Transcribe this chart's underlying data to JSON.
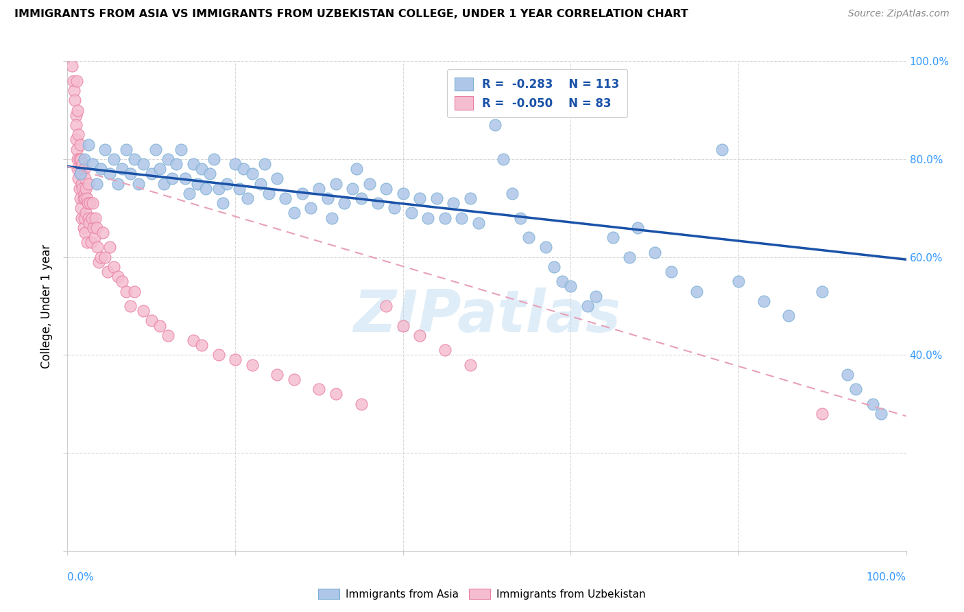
{
  "title": "IMMIGRANTS FROM ASIA VS IMMIGRANTS FROM UZBEKISTAN COLLEGE, UNDER 1 YEAR CORRELATION CHART",
  "source": "Source: ZipAtlas.com",
  "ylabel": "College, Under 1 year",
  "xlim": [
    0.0,
    1.0
  ],
  "ylim": [
    0.0,
    1.0
  ],
  "asia_color": "#aec6e8",
  "asia_edge_color": "#7aafd4",
  "uzbekistan_color": "#f5bdd0",
  "uzbekistan_edge_color": "#e87fa0",
  "asia_line_color": "#1a52a8",
  "uzbekistan_line_color": "#e8a0b8",
  "background_color": "#ffffff",
  "grid_color": "#d8d8d8",
  "watermark": "ZIPatlas",
  "asia_line_start_y": 0.785,
  "asia_line_end_y": 0.595,
  "uzbekistan_line_start_y": 0.785,
  "uzbekistan_line_end_y": 0.275,
  "asia_scatter_x": [
    0.015,
    0.02,
    0.025,
    0.03,
    0.035,
    0.04,
    0.045,
    0.05,
    0.055,
    0.06,
    0.065,
    0.07,
    0.075,
    0.08,
    0.085,
    0.09,
    0.1,
    0.105,
    0.11,
    0.115,
    0.12,
    0.125,
    0.13,
    0.135,
    0.14,
    0.145,
    0.15,
    0.155,
    0.16,
    0.165,
    0.17,
    0.175,
    0.18,
    0.185,
    0.19,
    0.2,
    0.205,
    0.21,
    0.215,
    0.22,
    0.23,
    0.235,
    0.24,
    0.25,
    0.26,
    0.27,
    0.28,
    0.29,
    0.3,
    0.31,
    0.315,
    0.32,
    0.33,
    0.34,
    0.345,
    0.35,
    0.36,
    0.37,
    0.38,
    0.39,
    0.4,
    0.41,
    0.42,
    0.43,
    0.44,
    0.45,
    0.46,
    0.47,
    0.48,
    0.49,
    0.5,
    0.51,
    0.52,
    0.53,
    0.54,
    0.55,
    0.57,
    0.58,
    0.59,
    0.6,
    0.62,
    0.63,
    0.65,
    0.67,
    0.68,
    0.7,
    0.72,
    0.75,
    0.78,
    0.8,
    0.83,
    0.86,
    0.9,
    0.93,
    0.94,
    0.96,
    0.97
  ],
  "asia_scatter_y": [
    0.77,
    0.8,
    0.83,
    0.79,
    0.75,
    0.78,
    0.82,
    0.77,
    0.8,
    0.75,
    0.78,
    0.82,
    0.77,
    0.8,
    0.75,
    0.79,
    0.77,
    0.82,
    0.78,
    0.75,
    0.8,
    0.76,
    0.79,
    0.82,
    0.76,
    0.73,
    0.79,
    0.75,
    0.78,
    0.74,
    0.77,
    0.8,
    0.74,
    0.71,
    0.75,
    0.79,
    0.74,
    0.78,
    0.72,
    0.77,
    0.75,
    0.79,
    0.73,
    0.76,
    0.72,
    0.69,
    0.73,
    0.7,
    0.74,
    0.72,
    0.68,
    0.75,
    0.71,
    0.74,
    0.78,
    0.72,
    0.75,
    0.71,
    0.74,
    0.7,
    0.73,
    0.69,
    0.72,
    0.68,
    0.72,
    0.68,
    0.71,
    0.68,
    0.72,
    0.67,
    0.94,
    0.87,
    0.8,
    0.73,
    0.68,
    0.64,
    0.62,
    0.58,
    0.55,
    0.54,
    0.5,
    0.52,
    0.64,
    0.6,
    0.66,
    0.61,
    0.57,
    0.53,
    0.82,
    0.55,
    0.51,
    0.48,
    0.53,
    0.36,
    0.33,
    0.3,
    0.28
  ],
  "uzbekistan_scatter_x": [
    0.005,
    0.007,
    0.008,
    0.009,
    0.01,
    0.01,
    0.01,
    0.011,
    0.011,
    0.012,
    0.012,
    0.012,
    0.013,
    0.013,
    0.014,
    0.014,
    0.015,
    0.015,
    0.015,
    0.016,
    0.016,
    0.016,
    0.017,
    0.017,
    0.018,
    0.018,
    0.019,
    0.019,
    0.02,
    0.02,
    0.02,
    0.021,
    0.021,
    0.021,
    0.022,
    0.022,
    0.023,
    0.023,
    0.024,
    0.025,
    0.025,
    0.026,
    0.027,
    0.028,
    0.029,
    0.03,
    0.031,
    0.032,
    0.033,
    0.035,
    0.036,
    0.037,
    0.04,
    0.042,
    0.045,
    0.048,
    0.05,
    0.055,
    0.06,
    0.065,
    0.07,
    0.075,
    0.08,
    0.09,
    0.1,
    0.11,
    0.12,
    0.15,
    0.16,
    0.18,
    0.2,
    0.22,
    0.25,
    0.27,
    0.3,
    0.32,
    0.35,
    0.38,
    0.4,
    0.42,
    0.45,
    0.48,
    0.9
  ],
  "uzbekistan_scatter_y": [
    0.99,
    0.96,
    0.94,
    0.92,
    0.89,
    0.87,
    0.84,
    0.82,
    0.96,
    0.8,
    0.78,
    0.9,
    0.76,
    0.85,
    0.74,
    0.8,
    0.72,
    0.78,
    0.83,
    0.77,
    0.8,
    0.7,
    0.75,
    0.68,
    0.74,
    0.79,
    0.72,
    0.66,
    0.78,
    0.73,
    0.68,
    0.76,
    0.72,
    0.65,
    0.74,
    0.69,
    0.72,
    0.63,
    0.71,
    0.68,
    0.75,
    0.67,
    0.71,
    0.63,
    0.68,
    0.71,
    0.66,
    0.64,
    0.68,
    0.66,
    0.62,
    0.59,
    0.6,
    0.65,
    0.6,
    0.57,
    0.62,
    0.58,
    0.56,
    0.55,
    0.53,
    0.5,
    0.53,
    0.49,
    0.47,
    0.46,
    0.44,
    0.43,
    0.42,
    0.4,
    0.39,
    0.38,
    0.36,
    0.35,
    0.33,
    0.32,
    0.3,
    0.5,
    0.46,
    0.44,
    0.41,
    0.38,
    0.28
  ]
}
